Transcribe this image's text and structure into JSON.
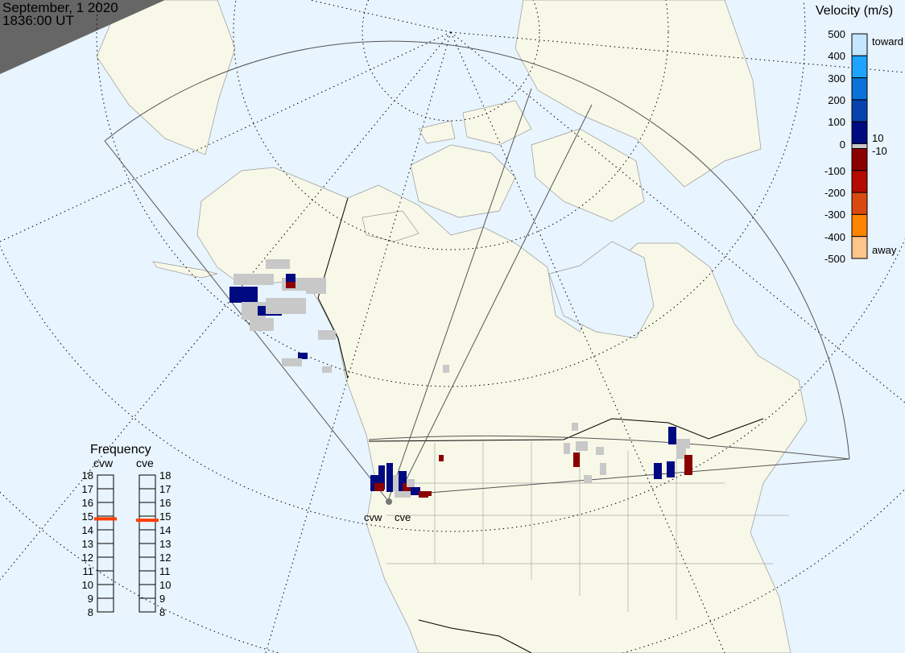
{
  "header": {
    "date": "September, 1 2020",
    "time": "1836:00 UT"
  },
  "colorbar": {
    "title": "Velocity (m/s)",
    "ticks": [
      "500",
      "400",
      "300",
      "200",
      "100",
      "0",
      "-100",
      "-200",
      "-300",
      "-400",
      "-500"
    ],
    "toward_label": "toward",
    "away_label": "away",
    "gs_upper": "10",
    "gs_lower": "-10",
    "colors": [
      "#c4e6ff",
      "#1ea4ff",
      "#0a72d8",
      "#0842ae",
      "#000a80",
      "#8a0000",
      "#b40a00",
      "#d84a10",
      "#ff8400",
      "#ffc488"
    ],
    "ground_scatter_color": "#c8c8c8"
  },
  "frequency": {
    "title": "Frequency",
    "radars": [
      {
        "name": "cvw",
        "value_mhz": 14.8
      },
      {
        "name": "cve",
        "value_mhz": 14.7
      }
    ],
    "ticks": [
      "18",
      "17",
      "16",
      "15",
      "14",
      "13",
      "12",
      "11",
      "10",
      "9",
      "8"
    ],
    "range": [
      8,
      18
    ],
    "marker_color": "#ff4000"
  },
  "map": {
    "ocean_color": "#e8f4fe",
    "land_color": "#f8f8e8",
    "night_color": "#666666",
    "stations": [
      {
        "name": "cvw"
      },
      {
        "name": "cve"
      }
    ]
  }
}
